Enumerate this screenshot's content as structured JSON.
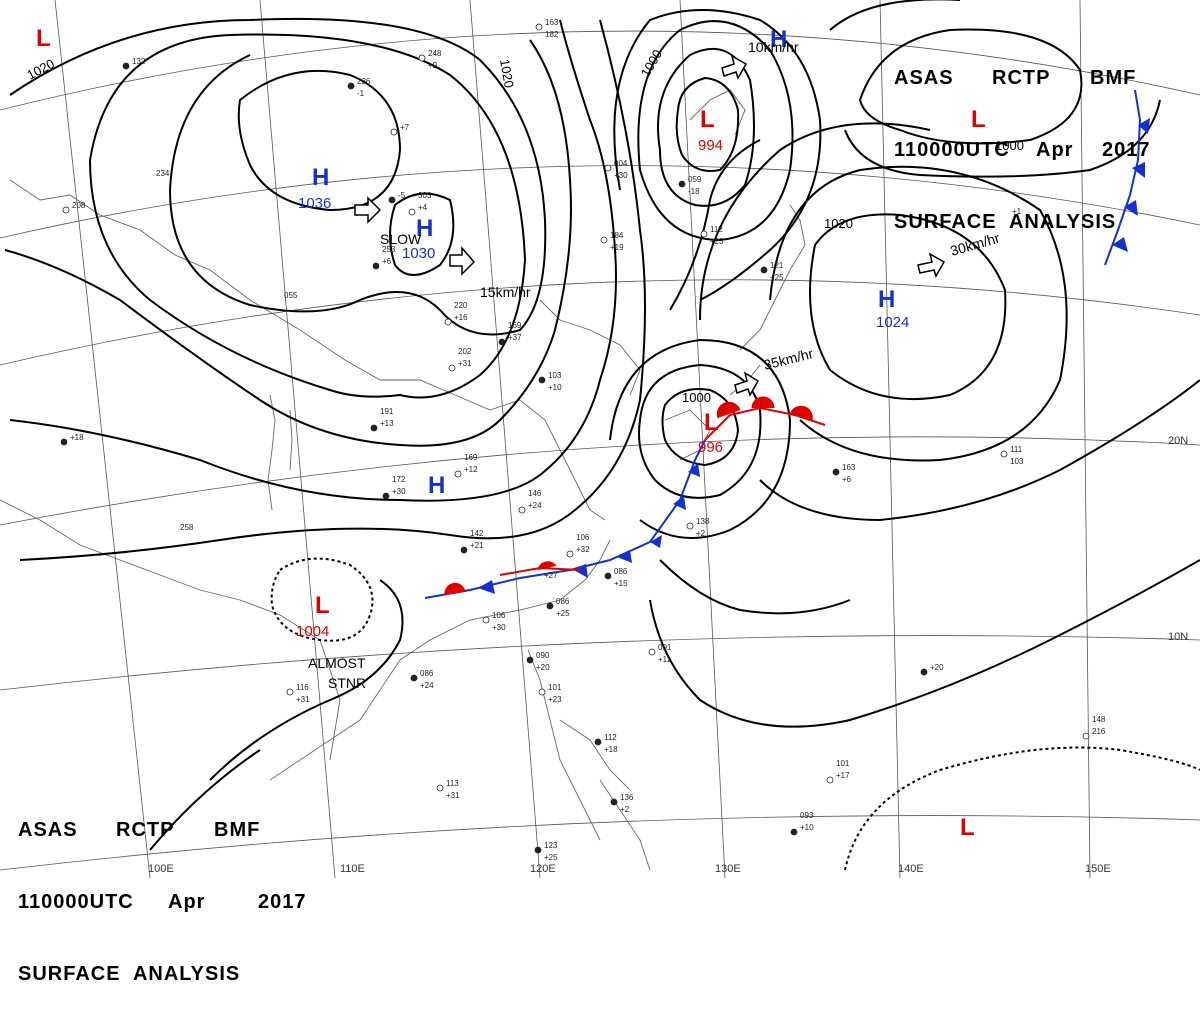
{
  "header_top": {
    "line1": [
      "ASAS",
      "RCTP",
      "BMF"
    ],
    "line2": [
      "110000UTC",
      "Apr",
      "2017"
    ],
    "line3": "SURFACE  ANALYSIS"
  },
  "header_bottom": {
    "line1": [
      "ASAS",
      "RCTP",
      "BMF"
    ],
    "line2": [
      "110000UTC",
      "Apr",
      "2017"
    ],
    "line3": "SURFACE  ANALYSIS"
  },
  "colors": {
    "high": "#1430d0",
    "low": "#e00000",
    "isobar": "#000000",
    "coast": "#555555"
  },
  "pressure_centers": [
    {
      "type": "H",
      "value": "1036"
    },
    {
      "type": "H",
      "value": "1030"
    },
    {
      "type": "H",
      "value": ""
    },
    {
      "type": "H",
      "value": ""
    },
    {
      "type": "H",
      "value": "1024"
    },
    {
      "type": "L",
      "value": "994"
    },
    {
      "type": "L",
      "value": "996"
    },
    {
      "type": "L",
      "value": "1004"
    },
    {
      "type": "L",
      "value": ""
    },
    {
      "type": "L",
      "value": ""
    },
    {
      "type": "L",
      "value": ""
    }
  ],
  "isobar_labels": [
    "1020",
    "1020",
    "1000",
    "1000",
    "1020",
    "1000"
  ],
  "movement_labels": [
    "SLOW",
    "15km/hr",
    "10km/hr",
    "35km/hr",
    "30km/hr"
  ],
  "annotation": [
    "ALMOST",
    "STNR"
  ],
  "grid_labels": [
    "20N",
    "10N",
    "100E",
    "110E",
    "120E",
    "130E",
    "140E",
    "150E"
  ],
  "station_samples": [
    "236",
    "-1",
    "248",
    "+9",
    "-5",
    "303",
    "+4",
    "253",
    "+6",
    "220",
    "+16",
    "169",
    "+37",
    "202",
    "+31",
    "191",
    "+13",
    "169",
    "+12",
    "172",
    "+30",
    "146",
    "+24",
    "142",
    "+21",
    "106",
    "+32",
    "+27",
    "086",
    "+25",
    "106",
    "+30",
    "086",
    "+24",
    "116",
    "+31",
    "090",
    "+20",
    "101",
    "+23",
    "112",
    "+18",
    "113",
    "+31",
    "123",
    "+25",
    "091",
    "+11",
    "086",
    "+15",
    "138",
    "+2",
    "163",
    "+6",
    "111",
    "103",
    "+20",
    "101",
    "+17",
    "093",
    "+10",
    "148",
    "216",
    "+1",
    "121",
    "+25",
    "184",
    "+19",
    "103",
    "+10",
    "004",
    "+30",
    "059",
    "-18",
    "112",
    "+23",
    "136",
    "+2",
    "163",
    "182",
    "132",
    "234",
    "208",
    "055",
    "+18",
    "258",
    "+7"
  ]
}
